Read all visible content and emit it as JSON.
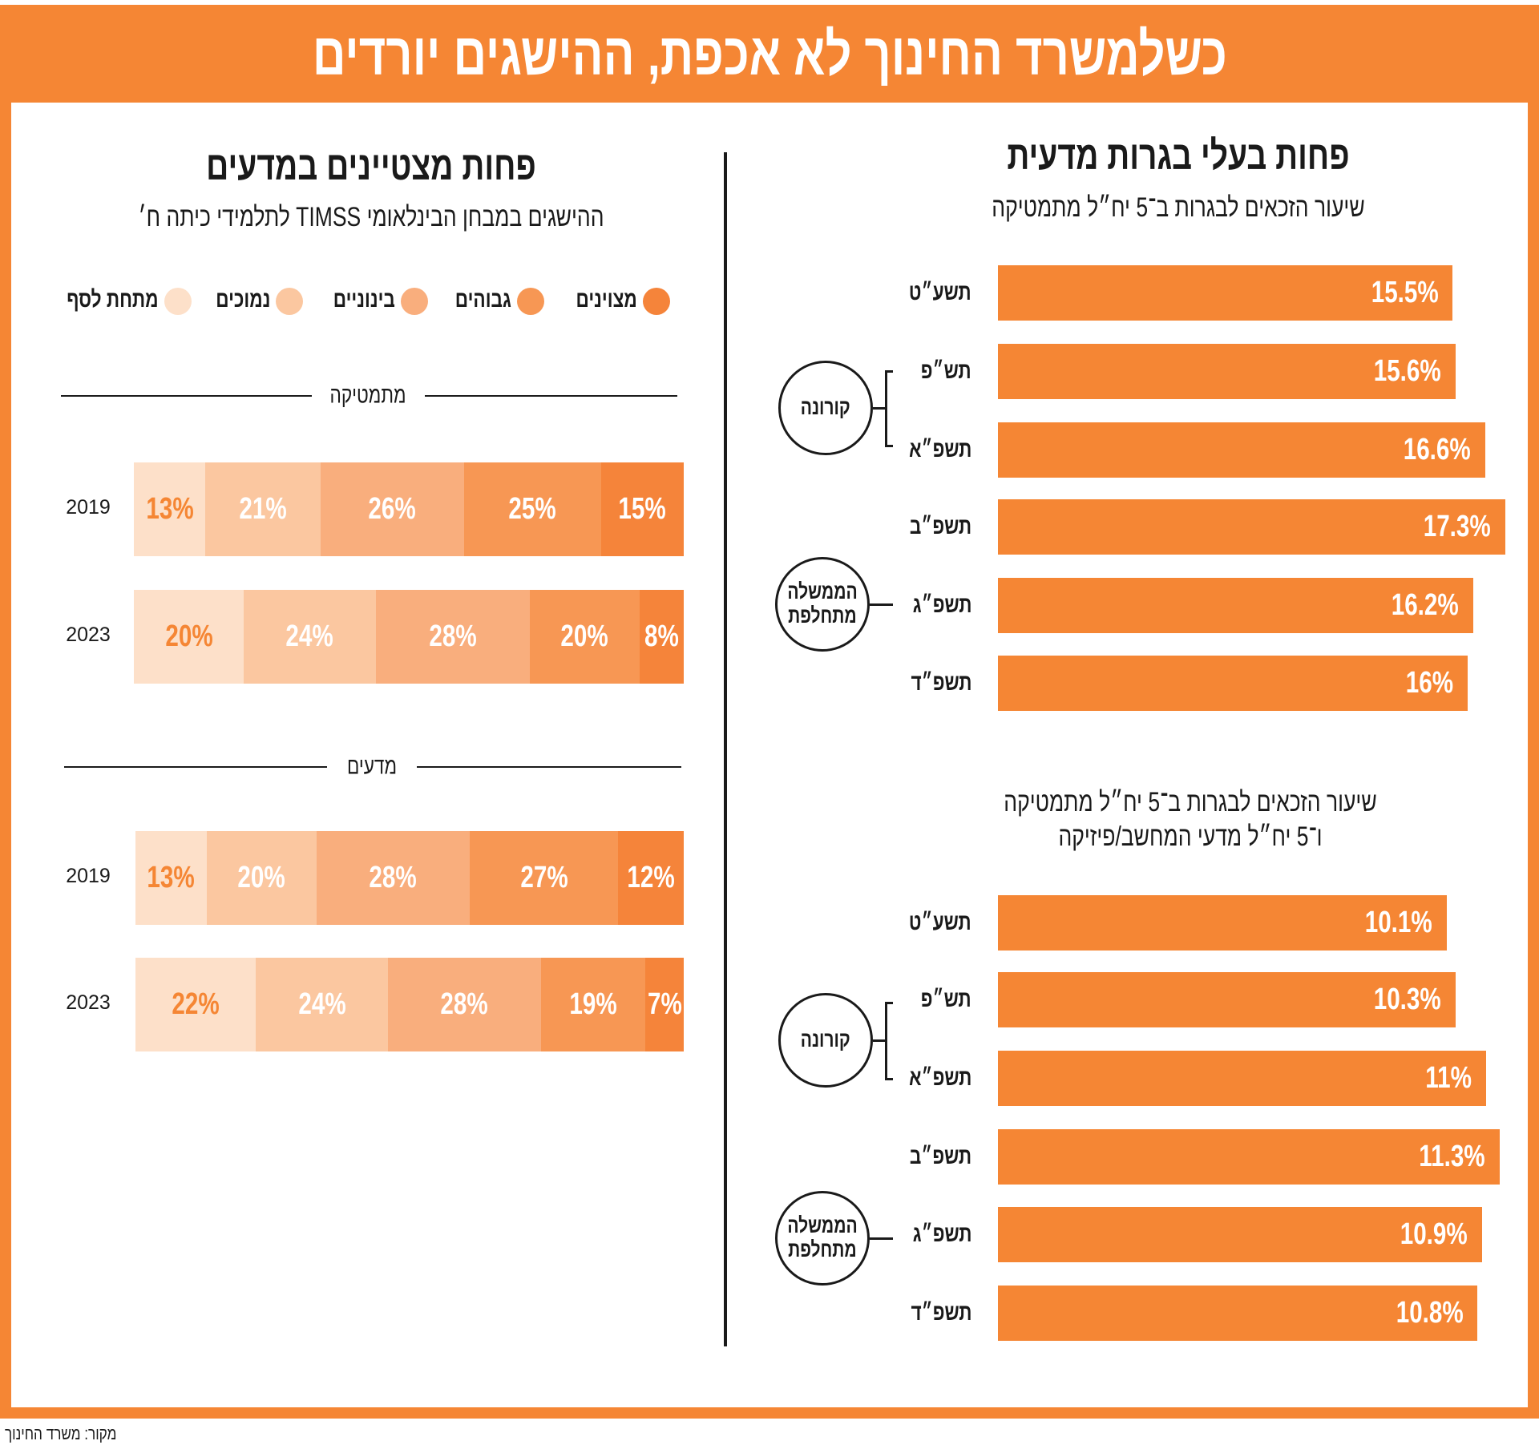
{
  "title": "כשלמשרד החינוך לא אכפת, ההישגים יורדים",
  "source": "מקור: משרד החינוך",
  "colors": {
    "accent": "#f58634",
    "levels": [
      "#fde0c9",
      "#fbc7a0",
      "#f9ae7d",
      "#f79754",
      "#f5843a"
    ]
  },
  "right": {
    "heading": "פחות בעלי בגרות מדעית",
    "annotations": {
      "corona": "קורונה",
      "gov_line1": "הממשלה",
      "gov_line2": "מתחלפת"
    }
  },
  "left": {
    "heading": "פחות מצטיינים במדעים",
    "subtitle": "ההישגים במבחן הבינלאומי TIMSS לתלמידי כיתה ח׳",
    "legend": [
      "מצוינים",
      "גבוהים",
      "בינוניים",
      "נמוכים",
      "מתחת לסף"
    ]
  },
  "chart_data": [
    {
      "type": "bar",
      "orientation": "horizontal",
      "title": "שיעור הזכאים לבגרות ב־5 יח״ל מתמטיקה",
      "categories": [
        "תשע״ט",
        "תש״פ",
        "תשפ״א",
        "תשפ״ב",
        "תשפ״ג",
        "תשפ״ד"
      ],
      "values": [
        15.5,
        15.6,
        16.6,
        17.3,
        16.2,
        16
      ],
      "labels": [
        "15.5%",
        "15.6%",
        "16.6%",
        "17.3%",
        "16.2%",
        "16%"
      ]
    },
    {
      "type": "bar",
      "orientation": "horizontal",
      "title": "שיעור הזכאים לבגרות ב־5 יח״ל מתמטיקה",
      "title_line2": "ו־5 יח״ל מדעי המחשב/פיזיקה",
      "categories": [
        "תשע״ט",
        "תש״פ",
        "תשפ״א",
        "תשפ״ב",
        "תשפ״ג",
        "תשפ״ד"
      ],
      "values": [
        10.1,
        10.3,
        11,
        11.3,
        10.9,
        10.8
      ],
      "labels": [
        "10.1%",
        "10.3%",
        "11%",
        "11.3%",
        "10.9%",
        "10.8%"
      ]
    },
    {
      "type": "bar",
      "stacked": true,
      "title": "מתמטיקה",
      "categories": [
        "2019",
        "2023"
      ],
      "series": [
        {
          "name": "מתחת לסף",
          "values": [
            13,
            20
          ]
        },
        {
          "name": "נמוכים",
          "values": [
            21,
            24
          ]
        },
        {
          "name": "בינוניים",
          "values": [
            26,
            28
          ]
        },
        {
          "name": "גבוהים",
          "values": [
            25,
            20
          ]
        },
        {
          "name": "מצוינים",
          "values": [
            15,
            8
          ]
        }
      ]
    },
    {
      "type": "bar",
      "stacked": true,
      "title": "מדעים",
      "categories": [
        "2019",
        "2023"
      ],
      "series": [
        {
          "name": "מתחת לסף",
          "values": [
            13,
            22
          ]
        },
        {
          "name": "נמוכים",
          "values": [
            20,
            24
          ]
        },
        {
          "name": "בינוניים",
          "values": [
            28,
            28
          ]
        },
        {
          "name": "גבוהים",
          "values": [
            27,
            19
          ]
        },
        {
          "name": "מצוינים",
          "values": [
            12,
            7
          ]
        }
      ]
    }
  ]
}
